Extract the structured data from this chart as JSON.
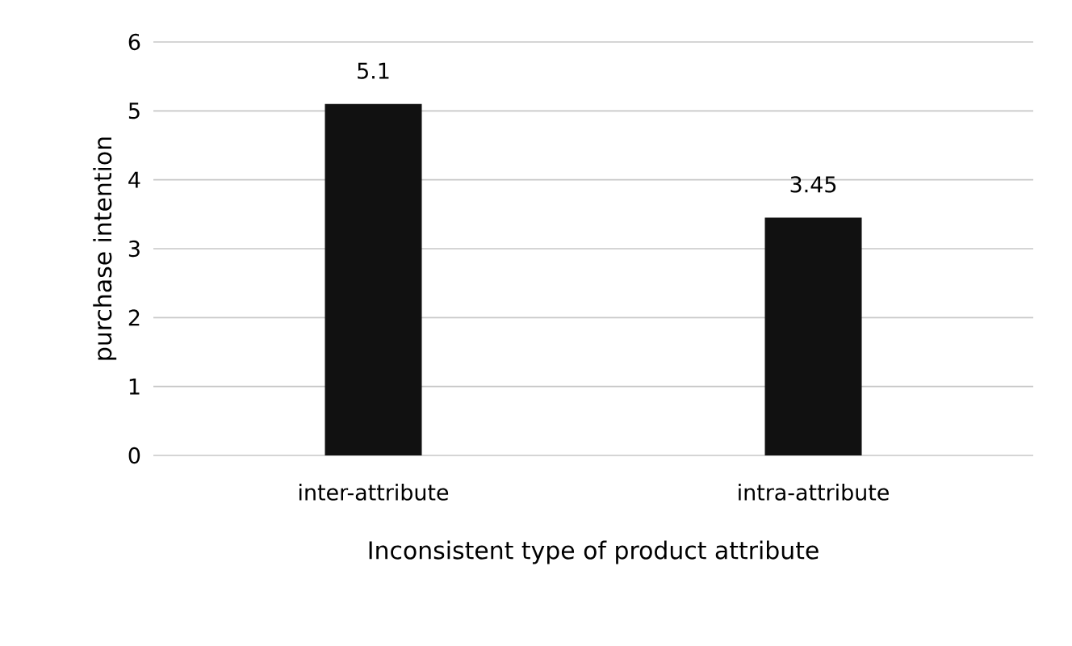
{
  "chart_data": {
    "type": "bar",
    "xlabel": "Inconsistent type of product attribute",
    "ylabel": "purchase intention",
    "categories": [
      "inter-attribute",
      "intra-attribute"
    ],
    "values": [
      5.1,
      3.45
    ],
    "color": "#111111",
    "ylim": [
      0,
      6
    ],
    "yticks": [
      0,
      1,
      2,
      3,
      4,
      5,
      6
    ],
    "grid": "y",
    "data_labels": true
  }
}
